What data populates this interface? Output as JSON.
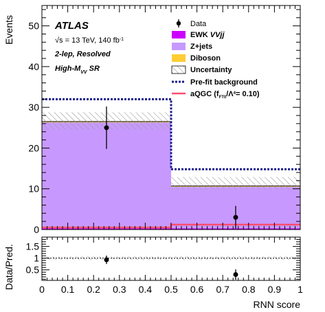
{
  "colors": {
    "ewk": "#cc00ff",
    "zjets": "#c799ff",
    "diboson": "#ffcc33",
    "uncertainty_hatch": "#9a9a9a",
    "prefit": "#1a1a8c",
    "aqgc": "#ff4d6d",
    "data": "#000000"
  },
  "labels": {
    "experiment": "ATLAS",
    "energy": "√s = 13 TeV, 140 fb",
    "energy_sup": "-1",
    "channel": "2-lep, Resolved",
    "region_pre": "High-M",
    "region_sub": "VV",
    "region_post": " SR"
  },
  "legend": {
    "data": "Data",
    "ewk_pre": "EWK ",
    "ewk_post": "VVjj",
    "zjets": "Z+jets",
    "diboson": "Diboson",
    "uncertainty": "Uncertainty",
    "prefit": "Pre-fit background",
    "aqgc_a": "aQGC (f",
    "aqgc_sub": "FT0",
    "aqgc_b": "/Λ",
    "aqgc_sup": "4",
    "aqgc_c": "= 0.10)"
  },
  "chart_data": [
    {
      "type": "bar",
      "ylabel": "Events",
      "xlim": [
        0,
        1
      ],
      "ylim": [
        0,
        55
      ],
      "bins": [
        [
          0,
          0.5
        ],
        [
          0.5,
          1
        ]
      ],
      "yticks": [
        0,
        10,
        20,
        30,
        40,
        50
      ],
      "series": [
        {
          "name": "EWK VVjj",
          "values": [
            0.3,
            0.3
          ]
        },
        {
          "name": "Z+jets",
          "values": [
            26.0,
            10.2
          ]
        },
        {
          "name": "Diboson",
          "values": [
            0.2,
            0.2
          ]
        },
        {
          "name": "Pre-fit background",
          "values": [
            32.0,
            14.8
          ]
        },
        {
          "name": "aQGC (fFT0/Λ4= 0.10)",
          "values": [
            0.5,
            1.2
          ]
        }
      ],
      "uncertainty_band": [
        [
          24.5,
          28.8
        ],
        [
          9.8,
          12.9
        ]
      ],
      "data": {
        "x": [
          0.25,
          0.75
        ],
        "y": [
          25,
          3
        ],
        "yerr": [
          5.2,
          2.8
        ]
      }
    },
    {
      "type": "scatter",
      "ylabel": "Data/Pred.",
      "xlabel": "RNN score",
      "xlim": [
        0,
        1
      ],
      "ylim": [
        0.05,
        1.9
      ],
      "yticks": [
        "0.5",
        "1",
        "1.5"
      ],
      "xticks": [
        "0",
        "0.1",
        "0.2",
        "0.3",
        "0.4",
        "0.5",
        "0.6",
        "0.7",
        "0.8",
        "0.9",
        "1"
      ],
      "band": [
        0.92,
        1.08
      ],
      "x": [
        0.25,
        0.75
      ],
      "y": [
        0.93,
        0.3
      ],
      "yerr": [
        0.18,
        0.22
      ]
    }
  ]
}
